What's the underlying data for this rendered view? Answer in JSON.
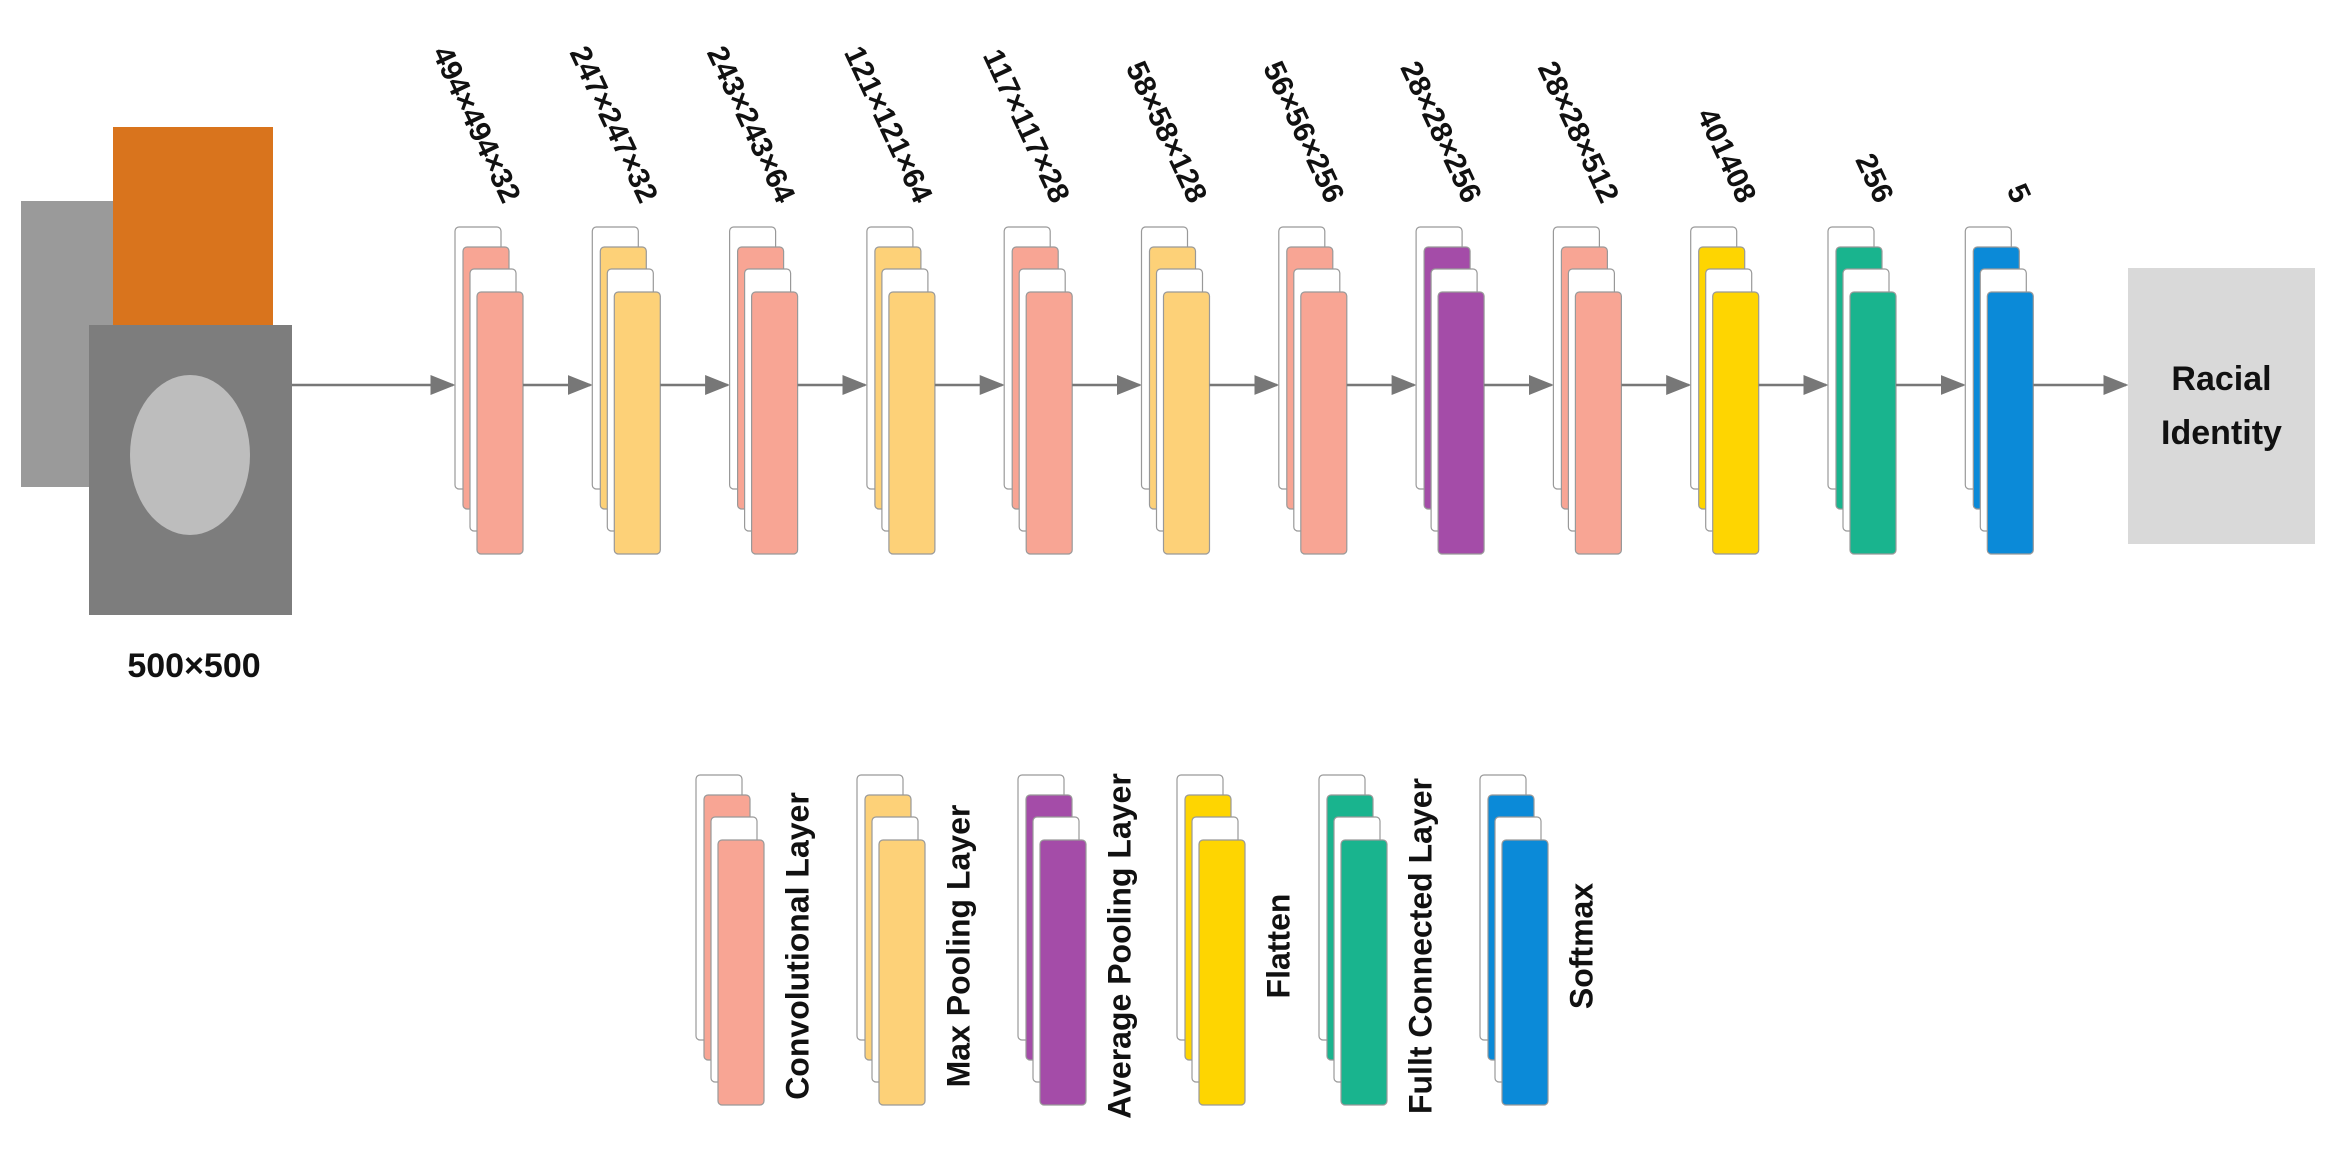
{
  "input": {
    "label": "500×500"
  },
  "layers": [
    {
      "label": "494×494×32",
      "color": "#f8a594"
    },
    {
      "label": "247×247×32",
      "color": "#fdd178"
    },
    {
      "label": "243×243×64",
      "color": "#f8a594"
    },
    {
      "label": "121×121×64",
      "color": "#fdd178"
    },
    {
      "label": "117×117×28",
      "color": "#f8a594"
    },
    {
      "label": "58×58×128",
      "color": "#fdd178"
    },
    {
      "label": "56×56×256",
      "color": "#f8a594"
    },
    {
      "label": "28×28×256",
      "color": "#a44ca8"
    },
    {
      "label": "28×28×512",
      "color": "#f8a594"
    },
    {
      "label": "401408",
      "color": "#fed501"
    },
    {
      "label": "256",
      "color": "#19b48e"
    },
    {
      "label": "5",
      "color": "#0b8ad8"
    }
  ],
  "output": {
    "label": "Racial Identity"
  },
  "legend": [
    {
      "label": "Convolutional Layer",
      "color": "#f8a594"
    },
    {
      "label": "Max Pooling Layer",
      "color": "#fdd178"
    },
    {
      "label": "Average Pooling Layer",
      "color": "#a44ca8"
    },
    {
      "label": "Flatten",
      "color": "#fed501"
    },
    {
      "label": "Fullt Connected Layer",
      "color": "#19b48e"
    },
    {
      "label": "Softmax",
      "color": "#0b8ad8"
    }
  ]
}
